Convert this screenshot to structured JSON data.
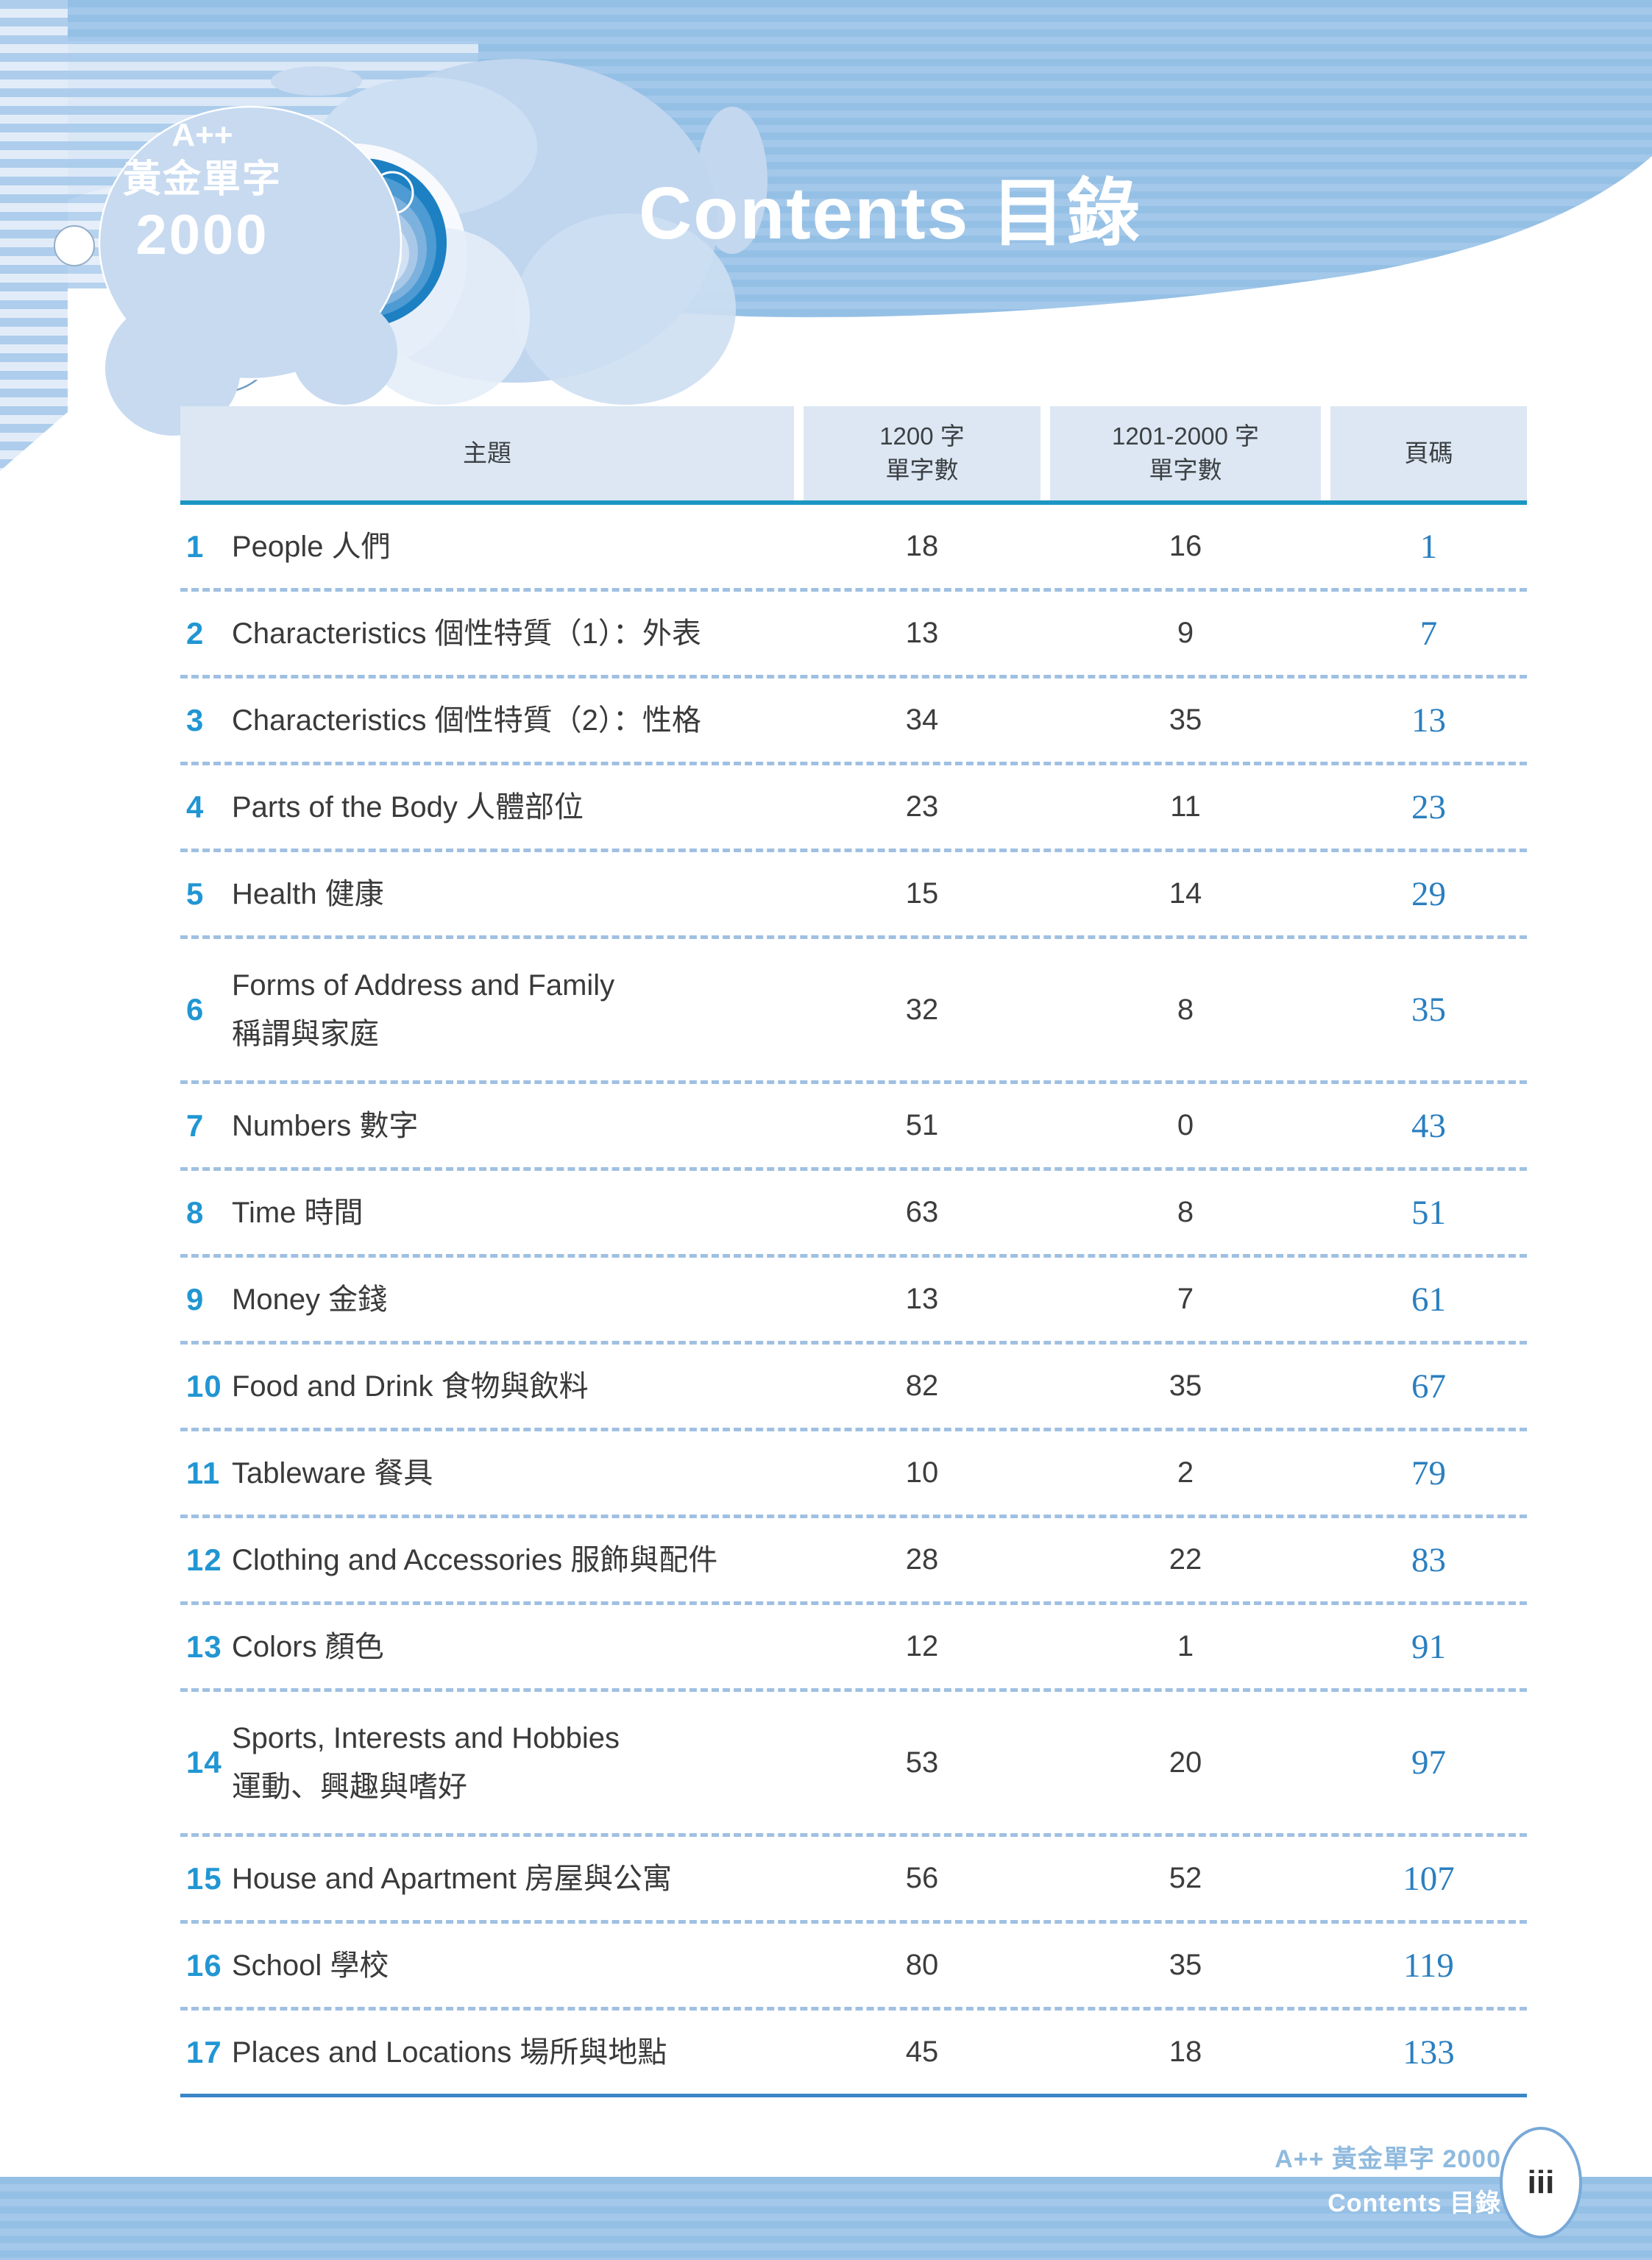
{
  "logo": {
    "line1": "A++",
    "line2": "黃金單字",
    "line3": "2000"
  },
  "header": {
    "title_en": "Contents",
    "title_zh": "目錄"
  },
  "table": {
    "headers": {
      "topic": "主題",
      "col1200_line1": "1200 字",
      "col1200_line2": "單字數",
      "col2000_line1": "1201-2000 字",
      "col2000_line2": "單字數",
      "page": "頁碼"
    },
    "rows": [
      {
        "no": "1",
        "title": "People 人們",
        "title2": "",
        "c1200": "18",
        "c2000": "16",
        "page": "1"
      },
      {
        "no": "2",
        "title": "Characteristics 個性特質（1）：外表",
        "title2": "",
        "c1200": "13",
        "c2000": "9",
        "page": "7"
      },
      {
        "no": "3",
        "title": "Characteristics 個性特質（2）：性格",
        "title2": "",
        "c1200": "34",
        "c2000": "35",
        "page": "13"
      },
      {
        "no": "4",
        "title": "Parts of the Body 人體部位",
        "title2": "",
        "c1200": "23",
        "c2000": "11",
        "page": "23"
      },
      {
        "no": "5",
        "title": "Health 健康",
        "title2": "",
        "c1200": "15",
        "c2000": "14",
        "page": "29"
      },
      {
        "no": "6",
        "title": "Forms of Address and Family",
        "title2": "稱謂與家庭",
        "c1200": "32",
        "c2000": "8",
        "page": "35"
      },
      {
        "no": "7",
        "title": "Numbers 數字",
        "title2": "",
        "c1200": "51",
        "c2000": "0",
        "page": "43"
      },
      {
        "no": "8",
        "title": "Time 時間",
        "title2": "",
        "c1200": "63",
        "c2000": "8",
        "page": "51"
      },
      {
        "no": "9",
        "title": "Money 金錢",
        "title2": "",
        "c1200": "13",
        "c2000": "7",
        "page": "61"
      },
      {
        "no": "10",
        "title": "Food and Drink 食物與飲料",
        "title2": "",
        "c1200": "82",
        "c2000": "35",
        "page": "67"
      },
      {
        "no": "11",
        "title": "Tableware 餐具",
        "title2": "",
        "c1200": "10",
        "c2000": "2",
        "page": "79"
      },
      {
        "no": "12",
        "title": "Clothing and Accessories 服飾與配件",
        "title2": "",
        "c1200": "28",
        "c2000": "22",
        "page": "83"
      },
      {
        "no": "13",
        "title": "Colors 顏色",
        "title2": "",
        "c1200": "12",
        "c2000": "1",
        "page": "91"
      },
      {
        "no": "14",
        "title": "Sports, Interests and Hobbies",
        "title2": "運動、興趣與嗜好",
        "c1200": "53",
        "c2000": "20",
        "page": "97"
      },
      {
        "no": "15",
        "title": "House and Apartment 房屋與公寓",
        "title2": "",
        "c1200": "56",
        "c2000": "52",
        "page": "107"
      },
      {
        "no": "16",
        "title": "School 學校",
        "title2": "",
        "c1200": "80",
        "c2000": "35",
        "page": "119"
      },
      {
        "no": "17",
        "title": "Places and Locations 場所與地點",
        "title2": "",
        "c1200": "45",
        "c2000": "18",
        "page": "133"
      }
    ]
  },
  "footer": {
    "book": "A++ 黃金單字 2000",
    "section": "Contents 目錄",
    "page_roman": "iii"
  },
  "colors": {
    "band_stripe_a": "#95c0e5",
    "band_stripe_b": "#a3c8ea",
    "table_header_bg": "#dce7f3",
    "header_rule": "#1b96c3",
    "row_separator": "#9fc0e2",
    "table_end_rule": "#3a86c6",
    "row_number": "#2196d3",
    "page_number": "#2a7fc0",
    "body_text": "#3a3a3a"
  }
}
